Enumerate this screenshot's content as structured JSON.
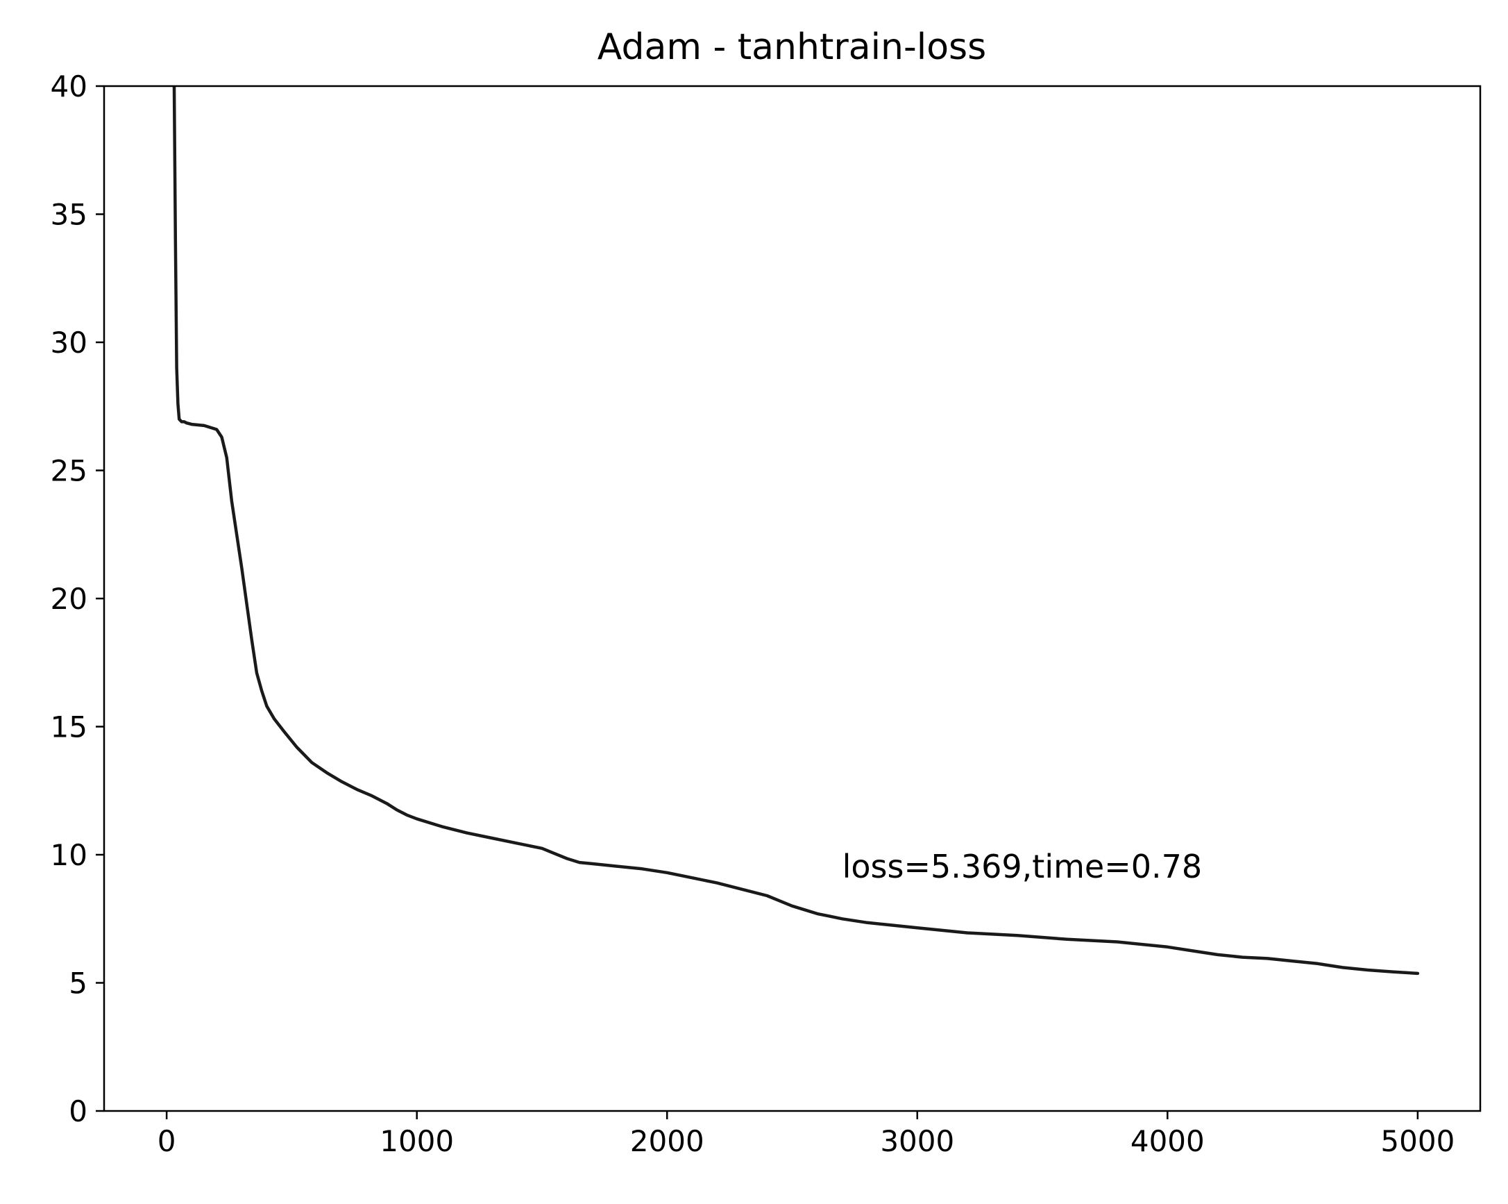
{
  "chart_data": {
    "type": "line",
    "title": "Adam - tanhtrain-loss",
    "xlabel": "",
    "ylabel": "",
    "xlim": [
      -250,
      5250
    ],
    "ylim": [
      0,
      40
    ],
    "xticks": [
      0,
      1000,
      2000,
      3000,
      4000,
      5000
    ],
    "xtick_labels": [
      "0",
      "1000",
      "2000",
      "3000",
      "4000",
      "5000"
    ],
    "yticks": [
      0,
      5,
      10,
      15,
      20,
      25,
      30,
      35,
      40
    ],
    "ytick_labels": [
      "0",
      "5",
      "10",
      "15",
      "20",
      "25",
      "30",
      "35",
      "40"
    ],
    "grid": false,
    "line_color": "#1a1a1a",
    "annotation": {
      "text": "loss=5.369,time=0.78",
      "x": 2700,
      "y": 9.1
    },
    "series": [
      {
        "x": [
          25,
          30,
          35,
          40,
          45,
          50,
          60,
          70,
          80,
          100,
          150,
          200,
          220,
          240,
          260,
          280,
          300,
          320,
          340,
          360,
          380,
          400,
          430,
          470,
          520,
          580,
          640,
          700,
          760,
          820,
          880,
          920,
          960,
          1000,
          1100,
          1200,
          1300,
          1400,
          1500,
          1550,
          1600,
          1650,
          1700,
          1800,
          1900,
          2000,
          2100,
          2200,
          2300,
          2400,
          2450,
          2500,
          2550,
          2600,
          2650,
          2700,
          2800,
          2900,
          3000,
          3200,
          3400,
          3600,
          3800,
          4000,
          4100,
          4200,
          4300,
          4400,
          4500,
          4600,
          4700,
          4800,
          4900,
          5000
        ],
        "y": [
          42,
          40,
          34,
          29,
          27.6,
          27.0,
          26.9,
          26.9,
          26.85,
          26.8,
          26.75,
          26.6,
          26.3,
          25.5,
          23.8,
          22.5,
          21.2,
          19.8,
          18.4,
          17.1,
          16.4,
          15.8,
          15.3,
          14.8,
          14.2,
          13.6,
          13.2,
          12.85,
          12.55,
          12.3,
          12.0,
          11.75,
          11.55,
          11.4,
          11.1,
          10.85,
          10.65,
          10.45,
          10.25,
          10.05,
          9.85,
          9.7,
          9.65,
          9.55,
          9.45,
          9.3,
          9.1,
          8.9,
          8.65,
          8.4,
          8.2,
          8.0,
          7.85,
          7.7,
          7.6,
          7.5,
          7.35,
          7.25,
          7.15,
          6.95,
          6.85,
          6.7,
          6.6,
          6.4,
          6.25,
          6.1,
          6.0,
          5.95,
          5.85,
          5.75,
          5.6,
          5.5,
          5.43,
          5.369
        ]
      }
    ]
  }
}
